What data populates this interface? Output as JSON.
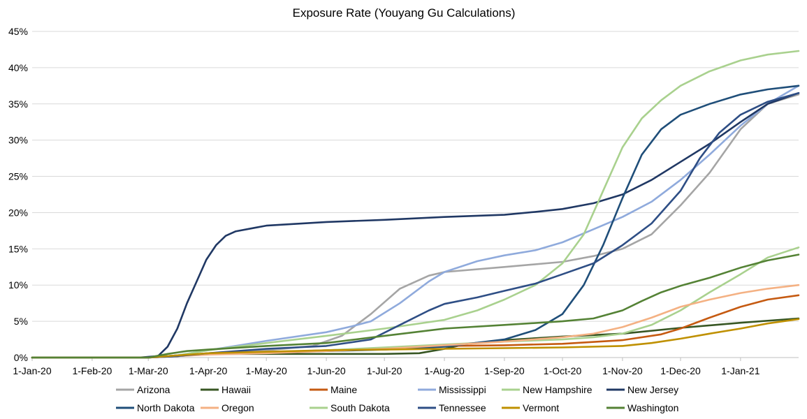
{
  "chart_data": {
    "type": "line",
    "title": "Exposure Rate (Youyang Gu Calculations)",
    "xlabel": "",
    "ylabel": "",
    "x_tick_labels": [
      "1-Jan-20",
      "1-Feb-20",
      "1-Mar-20",
      "1-Apr-20",
      "1-May-20",
      "1-Jun-20",
      "1-Jul-20",
      "1-Aug-20",
      "1-Sep-20",
      "1-Oct-20",
      "1-Nov-20",
      "1-Dec-20",
      "1-Jan-21"
    ],
    "x_tick_values": [
      0,
      31,
      60,
      91,
      121,
      152,
      182,
      213,
      244,
      274,
      305,
      335,
      366
    ],
    "xlim": [
      0,
      396
    ],
    "y_tick_labels": [
      "0%",
      "5%",
      "10%",
      "15%",
      "20%",
      "25%",
      "30%",
      "35%",
      "40%",
      "45%"
    ],
    "y_tick_values": [
      0,
      5,
      10,
      15,
      20,
      25,
      30,
      35,
      40,
      45
    ],
    "ylim": [
      0,
      45
    ],
    "grid": "horizontal",
    "legend_position": "bottom",
    "x_unit": "days since 1-Jan-20",
    "series": [
      {
        "name": "Arizona",
        "color": "#a5a5a5",
        "points": [
          [
            0,
            0
          ],
          [
            60,
            0
          ],
          [
            75,
            0.3
          ],
          [
            91,
            0.6
          ],
          [
            121,
            1.0
          ],
          [
            145,
            1.6
          ],
          [
            160,
            3.0
          ],
          [
            175,
            6.0
          ],
          [
            190,
            9.5
          ],
          [
            205,
            11.3
          ],
          [
            213,
            11.8
          ],
          [
            244,
            12.5
          ],
          [
            274,
            13.2
          ],
          [
            290,
            14.0
          ],
          [
            305,
            15.0
          ],
          [
            320,
            17.0
          ],
          [
            335,
            21.0
          ],
          [
            350,
            25.5
          ],
          [
            366,
            31.5
          ],
          [
            380,
            35.0
          ],
          [
            396,
            36.3
          ]
        ]
      },
      {
        "name": "Hawaii",
        "color": "#375623",
        "points": [
          [
            0,
            0
          ],
          [
            60,
            0
          ],
          [
            75,
            0.3
          ],
          [
            91,
            0.5
          ],
          [
            121,
            0.5
          ],
          [
            152,
            0.5
          ],
          [
            182,
            0.5
          ],
          [
            200,
            0.6
          ],
          [
            213,
            1.2
          ],
          [
            225,
            1.9
          ],
          [
            244,
            2.4
          ],
          [
            274,
            2.9
          ],
          [
            305,
            3.3
          ],
          [
            335,
            4.1
          ],
          [
            366,
            4.8
          ],
          [
            396,
            5.4
          ]
        ]
      },
      {
        "name": "Maine",
        "color": "#c55a11",
        "points": [
          [
            0,
            0
          ],
          [
            60,
            0
          ],
          [
            75,
            0.2
          ],
          [
            91,
            0.5
          ],
          [
            121,
            0.7
          ],
          [
            152,
            1.0
          ],
          [
            182,
            1.3
          ],
          [
            213,
            1.6
          ],
          [
            244,
            1.7
          ],
          [
            274,
            1.9
          ],
          [
            305,
            2.4
          ],
          [
            325,
            3.2
          ],
          [
            335,
            4.0
          ],
          [
            350,
            5.5
          ],
          [
            366,
            7.0
          ],
          [
            380,
            8.0
          ],
          [
            396,
            8.6
          ]
        ]
      },
      {
        "name": "Mississippi",
        "color": "#8faadc",
        "points": [
          [
            0,
            0
          ],
          [
            60,
            0
          ],
          [
            75,
            0.3
          ],
          [
            91,
            1.0
          ],
          [
            121,
            2.3
          ],
          [
            152,
            3.5
          ],
          [
            165,
            4.3
          ],
          [
            175,
            5.0
          ],
          [
            190,
            7.5
          ],
          [
            205,
            10.5
          ],
          [
            213,
            11.8
          ],
          [
            230,
            13.3
          ],
          [
            244,
            14.1
          ],
          [
            260,
            14.8
          ],
          [
            274,
            15.9
          ],
          [
            290,
            17.7
          ],
          [
            305,
            19.4
          ],
          [
            320,
            21.5
          ],
          [
            335,
            24.5
          ],
          [
            350,
            28.0
          ],
          [
            366,
            32.0
          ],
          [
            380,
            35.0
          ],
          [
            396,
            37.5
          ]
        ]
      },
      {
        "name": "New Hampshire",
        "color": "#a9d18e",
        "points": [
          [
            0,
            0
          ],
          [
            60,
            0
          ],
          [
            75,
            0.2
          ],
          [
            91,
            0.5
          ],
          [
            121,
            0.7
          ],
          [
            152,
            1.0
          ],
          [
            182,
            1.4
          ],
          [
            213,
            1.8
          ],
          [
            244,
            2.2
          ],
          [
            274,
            2.5
          ],
          [
            290,
            2.8
          ],
          [
            305,
            3.3
          ],
          [
            320,
            4.5
          ],
          [
            335,
            6.5
          ],
          [
            350,
            9.0
          ],
          [
            366,
            11.5
          ],
          [
            380,
            13.8
          ],
          [
            396,
            15.2
          ]
        ]
      },
      {
        "name": "New Jersey",
        "color": "#203864",
        "points": [
          [
            0,
            0
          ],
          [
            55,
            0
          ],
          [
            65,
            0.2
          ],
          [
            70,
            1.5
          ],
          [
            75,
            4.0
          ],
          [
            80,
            7.5
          ],
          [
            85,
            10.5
          ],
          [
            90,
            13.5
          ],
          [
            95,
            15.5
          ],
          [
            100,
            16.8
          ],
          [
            105,
            17.4
          ],
          [
            115,
            17.9
          ],
          [
            121,
            18.2
          ],
          [
            152,
            18.7
          ],
          [
            182,
            19.0
          ],
          [
            213,
            19.4
          ],
          [
            244,
            19.7
          ],
          [
            260,
            20.1
          ],
          [
            274,
            20.5
          ],
          [
            290,
            21.3
          ],
          [
            305,
            22.5
          ],
          [
            320,
            24.5
          ],
          [
            335,
            27.0
          ],
          [
            350,
            29.5
          ],
          [
            366,
            32.5
          ],
          [
            380,
            35.0
          ],
          [
            396,
            36.5
          ]
        ]
      },
      {
        "name": "North Dakota",
        "color": "#1f4e79",
        "points": [
          [
            0,
            0
          ],
          [
            60,
            0
          ],
          [
            75,
            0.2
          ],
          [
            91,
            0.5
          ],
          [
            121,
            0.7
          ],
          [
            152,
            0.9
          ],
          [
            182,
            1.1
          ],
          [
            213,
            1.5
          ],
          [
            244,
            2.5
          ],
          [
            260,
            3.8
          ],
          [
            274,
            6.0
          ],
          [
            285,
            10.0
          ],
          [
            295,
            15.5
          ],
          [
            305,
            22.0
          ],
          [
            315,
            28.0
          ],
          [
            325,
            31.5
          ],
          [
            335,
            33.5
          ],
          [
            350,
            35.0
          ],
          [
            366,
            36.3
          ],
          [
            380,
            37.0
          ],
          [
            396,
            37.5
          ]
        ]
      },
      {
        "name": "Oregon",
        "color": "#f4b183",
        "points": [
          [
            0,
            0
          ],
          [
            60,
            0
          ],
          [
            75,
            0.2
          ],
          [
            91,
            0.4
          ],
          [
            121,
            0.6
          ],
          [
            152,
            0.9
          ],
          [
            182,
            1.2
          ],
          [
            213,
            1.7
          ],
          [
            244,
            2.2
          ],
          [
            274,
            2.8
          ],
          [
            290,
            3.3
          ],
          [
            305,
            4.2
          ],
          [
            320,
            5.5
          ],
          [
            335,
            7.0
          ],
          [
            350,
            8.0
          ],
          [
            366,
            8.9
          ],
          [
            380,
            9.5
          ],
          [
            396,
            10.0
          ]
        ]
      },
      {
        "name": "South Dakota",
        "color": "#a9d18e",
        "points": [
          [
            0,
            0
          ],
          [
            60,
            0
          ],
          [
            75,
            0.3
          ],
          [
            91,
            1.0
          ],
          [
            121,
            2.0
          ],
          [
            152,
            3.0
          ],
          [
            182,
            4.0
          ],
          [
            213,
            5.2
          ],
          [
            230,
            6.5
          ],
          [
            244,
            8.0
          ],
          [
            260,
            10.0
          ],
          [
            274,
            13.0
          ],
          [
            285,
            17.0
          ],
          [
            295,
            23.0
          ],
          [
            305,
            29.0
          ],
          [
            315,
            33.0
          ],
          [
            325,
            35.5
          ],
          [
            335,
            37.5
          ],
          [
            350,
            39.5
          ],
          [
            366,
            41.0
          ],
          [
            380,
            41.8
          ],
          [
            396,
            42.3
          ]
        ]
      },
      {
        "name": "Tennessee",
        "color": "#2e4e85",
        "points": [
          [
            0,
            0
          ],
          [
            60,
            0
          ],
          [
            75,
            0.2
          ],
          [
            91,
            0.6
          ],
          [
            121,
            1.2
          ],
          [
            152,
            1.6
          ],
          [
            175,
            2.5
          ],
          [
            190,
            4.5
          ],
          [
            205,
            6.5
          ],
          [
            213,
            7.4
          ],
          [
            230,
            8.3
          ],
          [
            244,
            9.2
          ],
          [
            260,
            10.2
          ],
          [
            274,
            11.5
          ],
          [
            290,
            13.0
          ],
          [
            305,
            15.5
          ],
          [
            320,
            18.5
          ],
          [
            335,
            23.0
          ],
          [
            345,
            27.5
          ],
          [
            355,
            31.0
          ],
          [
            366,
            33.5
          ],
          [
            380,
            35.3
          ],
          [
            396,
            36.5
          ]
        ]
      },
      {
        "name": "Vermont",
        "color": "#bf9000",
        "points": [
          [
            0,
            0
          ],
          [
            60,
            0
          ],
          [
            75,
            0.3
          ],
          [
            91,
            0.6
          ],
          [
            121,
            0.8
          ],
          [
            152,
            1.0
          ],
          [
            182,
            1.1
          ],
          [
            213,
            1.2
          ],
          [
            244,
            1.3
          ],
          [
            274,
            1.4
          ],
          [
            305,
            1.6
          ],
          [
            320,
            2.0
          ],
          [
            335,
            2.6
          ],
          [
            350,
            3.3
          ],
          [
            366,
            4.0
          ],
          [
            380,
            4.7
          ],
          [
            396,
            5.3
          ]
        ]
      },
      {
        "name": "Washington",
        "color": "#548235",
        "points": [
          [
            0,
            0
          ],
          [
            60,
            0
          ],
          [
            70,
            0.5
          ],
          [
            80,
            0.9
          ],
          [
            91,
            1.1
          ],
          [
            121,
            1.6
          ],
          [
            152,
            2.0
          ],
          [
            182,
            3.0
          ],
          [
            213,
            4.0
          ],
          [
            244,
            4.5
          ],
          [
            274,
            5.0
          ],
          [
            290,
            5.4
          ],
          [
            305,
            6.5
          ],
          [
            315,
            7.8
          ],
          [
            325,
            9.0
          ],
          [
            335,
            9.9
          ],
          [
            350,
            11.0
          ],
          [
            366,
            12.4
          ],
          [
            380,
            13.4
          ],
          [
            396,
            14.2
          ]
        ]
      }
    ]
  }
}
